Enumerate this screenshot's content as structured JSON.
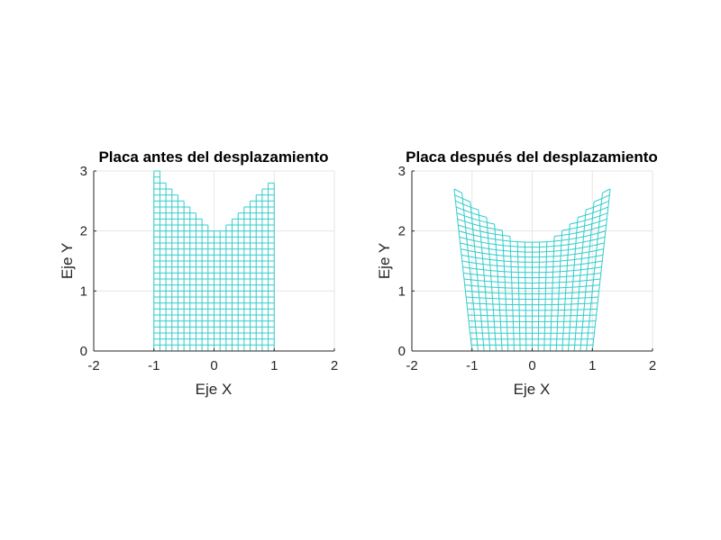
{
  "chart_data": [
    {
      "type": "mesh",
      "title": "Placa antes del desplazamiento",
      "xlabel": "Eje X",
      "ylabel": "Eje Y",
      "xlim": [
        -2,
        2
      ],
      "ylim": [
        0,
        3
      ],
      "xticks": [
        "-2",
        "-1",
        "0",
        "1",
        "2"
      ],
      "yticks": [
        "0",
        "1",
        "2",
        "3"
      ],
      "grid": true,
      "mesh_color": "#33cccc",
      "mesh": {
        "x_range": [
          -1,
          1
        ],
        "columns": 20,
        "row_height": 0.1,
        "column_tops": [
          3.0,
          2.8,
          2.7,
          2.6,
          2.5,
          2.4,
          2.3,
          2.2,
          2.1,
          2.0,
          2.0,
          2.0,
          2.1,
          2.2,
          2.3,
          2.4,
          2.5,
          2.6,
          2.7,
          2.8
        ]
      }
    },
    {
      "type": "mesh",
      "title": "Placa después del desplazamiento",
      "xlabel": "Eje X",
      "ylabel": "Eje Y",
      "xlim": [
        -2,
        2
      ],
      "ylim": [
        0,
        3
      ],
      "xticks": [
        "-2",
        "-1",
        "0",
        "1",
        "2"
      ],
      "yticks": [
        "0",
        "1",
        "2",
        "3"
      ],
      "grid": true,
      "mesh_color": "#33cccc",
      "mesh": {
        "x_range": [
          -1,
          1
        ],
        "columns": 20,
        "row_height": 0.1,
        "column_tops": [
          2.7,
          2.6,
          2.5,
          2.4,
          2.3,
          2.2,
          2.1,
          2.0,
          2.0,
          2.0,
          2.0,
          2.0,
          2.0,
          2.1,
          2.2,
          2.3,
          2.4,
          2.5,
          2.6,
          2.7
        ],
        "deformation": {
          "flare_per_unit_y": 0.11,
          "crown_sag": 0.14
        }
      }
    }
  ]
}
